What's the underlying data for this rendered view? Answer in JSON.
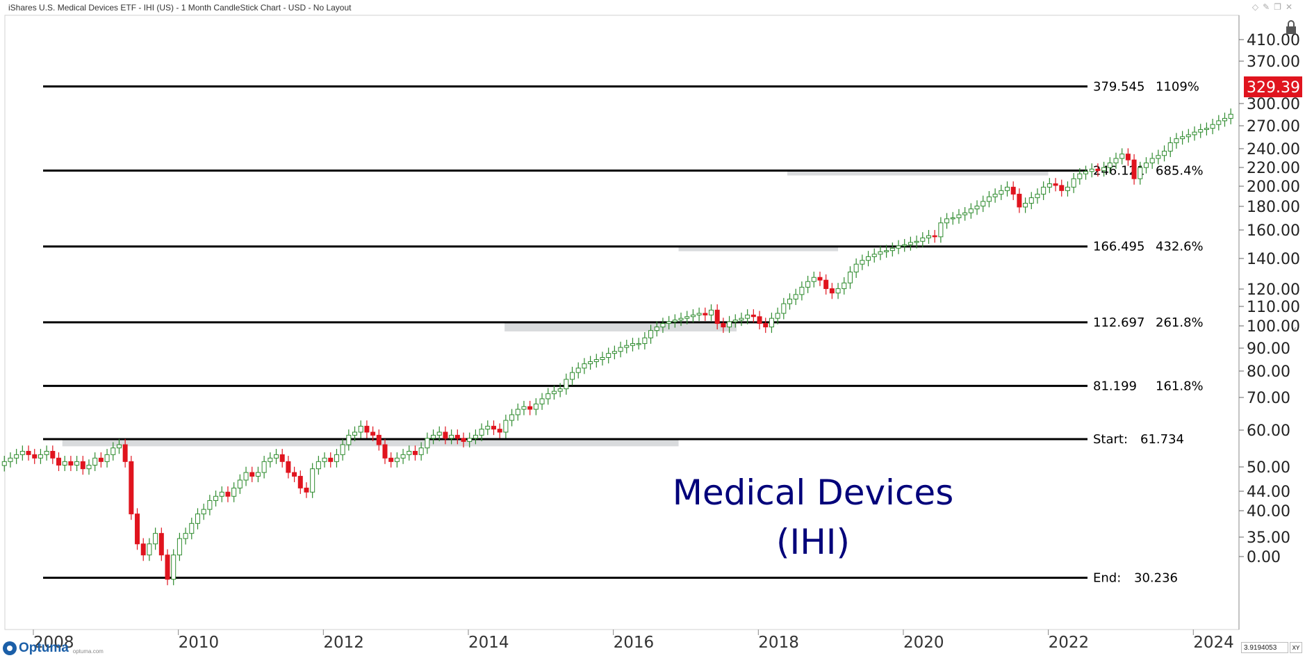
{
  "window": {
    "title": "iShares U.S. Medical Devices ETF - IHI (US) - 1 Month CandleStick Chart - USD - No Layout"
  },
  "footer": {
    "logo_text": "Optuma",
    "logo_sub": "optuma.com",
    "zoom_value": "3.9194053",
    "xy_label": "XY"
  },
  "icons": [
    "lock-icon",
    "collapse-arrow-icon",
    "diamond-icon",
    "pin-icon",
    "restore-icon",
    "close-icon"
  ],
  "colors": {
    "up_candle": "#2e8b2e",
    "down_candle": "#e0141e",
    "price_tag_bg": "#e0141e",
    "annotation_text": "#00007a",
    "level_line": "#000000",
    "zone_band": "#d9dbdd"
  },
  "chart_data": {
    "type": "candlestick",
    "title": "Medical Devices",
    "subtitle": "(IHI)",
    "scale": "log",
    "y_axis_ticks": [
      "410.00",
      "370.00",
      "300.00",
      "270.00",
      "240.00",
      "220.00",
      "200.00",
      "180.00",
      "160.00",
      "140.00",
      "120.00",
      "110.00",
      "100.00",
      "90.00",
      "80.00",
      "70.00",
      "60.00",
      "50.00",
      "44.00",
      "40.00",
      "35.00",
      "0.00"
    ],
    "x_axis_ticks": [
      "2008",
      "2010",
      "2012",
      "2014",
      "2016",
      "2018",
      "2020",
      "2022",
      "2024"
    ],
    "last_price": "329.39",
    "levels": [
      {
        "price_label": "379.545",
        "pct_label": "1109%",
        "value": 379.545
      },
      {
        "price_label": "246.121",
        "pct_label": "685.4%",
        "value": 246.121
      },
      {
        "price_label": "166.495",
        "pct_label": "432.6%",
        "value": 166.495
      },
      {
        "price_label": "112.697",
        "pct_label": "261.8%",
        "value": 112.697
      },
      {
        "price_label": "81.199",
        "pct_label": "161.8%",
        "value": 81.199
      },
      {
        "prefix": "Start:",
        "price_label": "61.734",
        "value": 61.734
      },
      {
        "prefix": "End:",
        "price_label": "30.236",
        "value": 30.236
      }
    ],
    "zones": [
      {
        "from": 2008.4,
        "to": 2016.9,
        "low": 59.5,
        "high": 61.7
      },
      {
        "from": 2014.5,
        "to": 2017.7,
        "low": 107.5,
        "high": 112.7
      },
      {
        "from": 2016.9,
        "to": 2019.1,
        "low": 162.5,
        "high": 166.5
      },
      {
        "from": 2018.4,
        "to": 2022.0,
        "low": 240.0,
        "high": 246.1
      }
    ],
    "closes": [
      55,
      56,
      57,
      58,
      57,
      56,
      57,
      58,
      56,
      54,
      55,
      54,
      55,
      53,
      54,
      56,
      55,
      57,
      59,
      60,
      55,
      42,
      36,
      34,
      36,
      38,
      34,
      30,
      34,
      37,
      38,
      40,
      42,
      43,
      45,
      46,
      47,
      46,
      48,
      50,
      52,
      51,
      52,
      55,
      56,
      57,
      55,
      52,
      51,
      48,
      47,
      53,
      55,
      56,
      55,
      57,
      60,
      63,
      64,
      66,
      64,
      63,
      60,
      56,
      55,
      56,
      57,
      58,
      57,
      59,
      62,
      63,
      64,
      62,
      63,
      62,
      61,
      62,
      63,
      65,
      66,
      65,
      64,
      68,
      70,
      72,
      73,
      72,
      74,
      76,
      78,
      79,
      80,
      84,
      87,
      89,
      91,
      92,
      93,
      94,
      96,
      97,
      99,
      100,
      101,
      101,
      104,
      108,
      110,
      112,
      113,
      114,
      115,
      116,
      117,
      118,
      117,
      120,
      112,
      110,
      113,
      114,
      115,
      117,
      116,
      112,
      110,
      115,
      118,
      124,
      127,
      130,
      135,
      139,
      142,
      140,
      134,
      131,
      134,
      138,
      146,
      152,
      155,
      158,
      160,
      162,
      163,
      165,
      167,
      168,
      170,
      171,
      174,
      176,
      175,
      188,
      192,
      193,
      196,
      198,
      202,
      205,
      210,
      215,
      218,
      222,
      226,
      218,
      204,
      208,
      214,
      218,
      226,
      230,
      228,
      222,
      226,
      236,
      242,
      245,
      248,
      246,
      250,
      256,
      262,
      268,
      260,
      236,
      250,
      256,
      262,
      266,
      272,
      284,
      290,
      293,
      296,
      300,
      304,
      306,
      312,
      318,
      322,
      329
    ]
  }
}
